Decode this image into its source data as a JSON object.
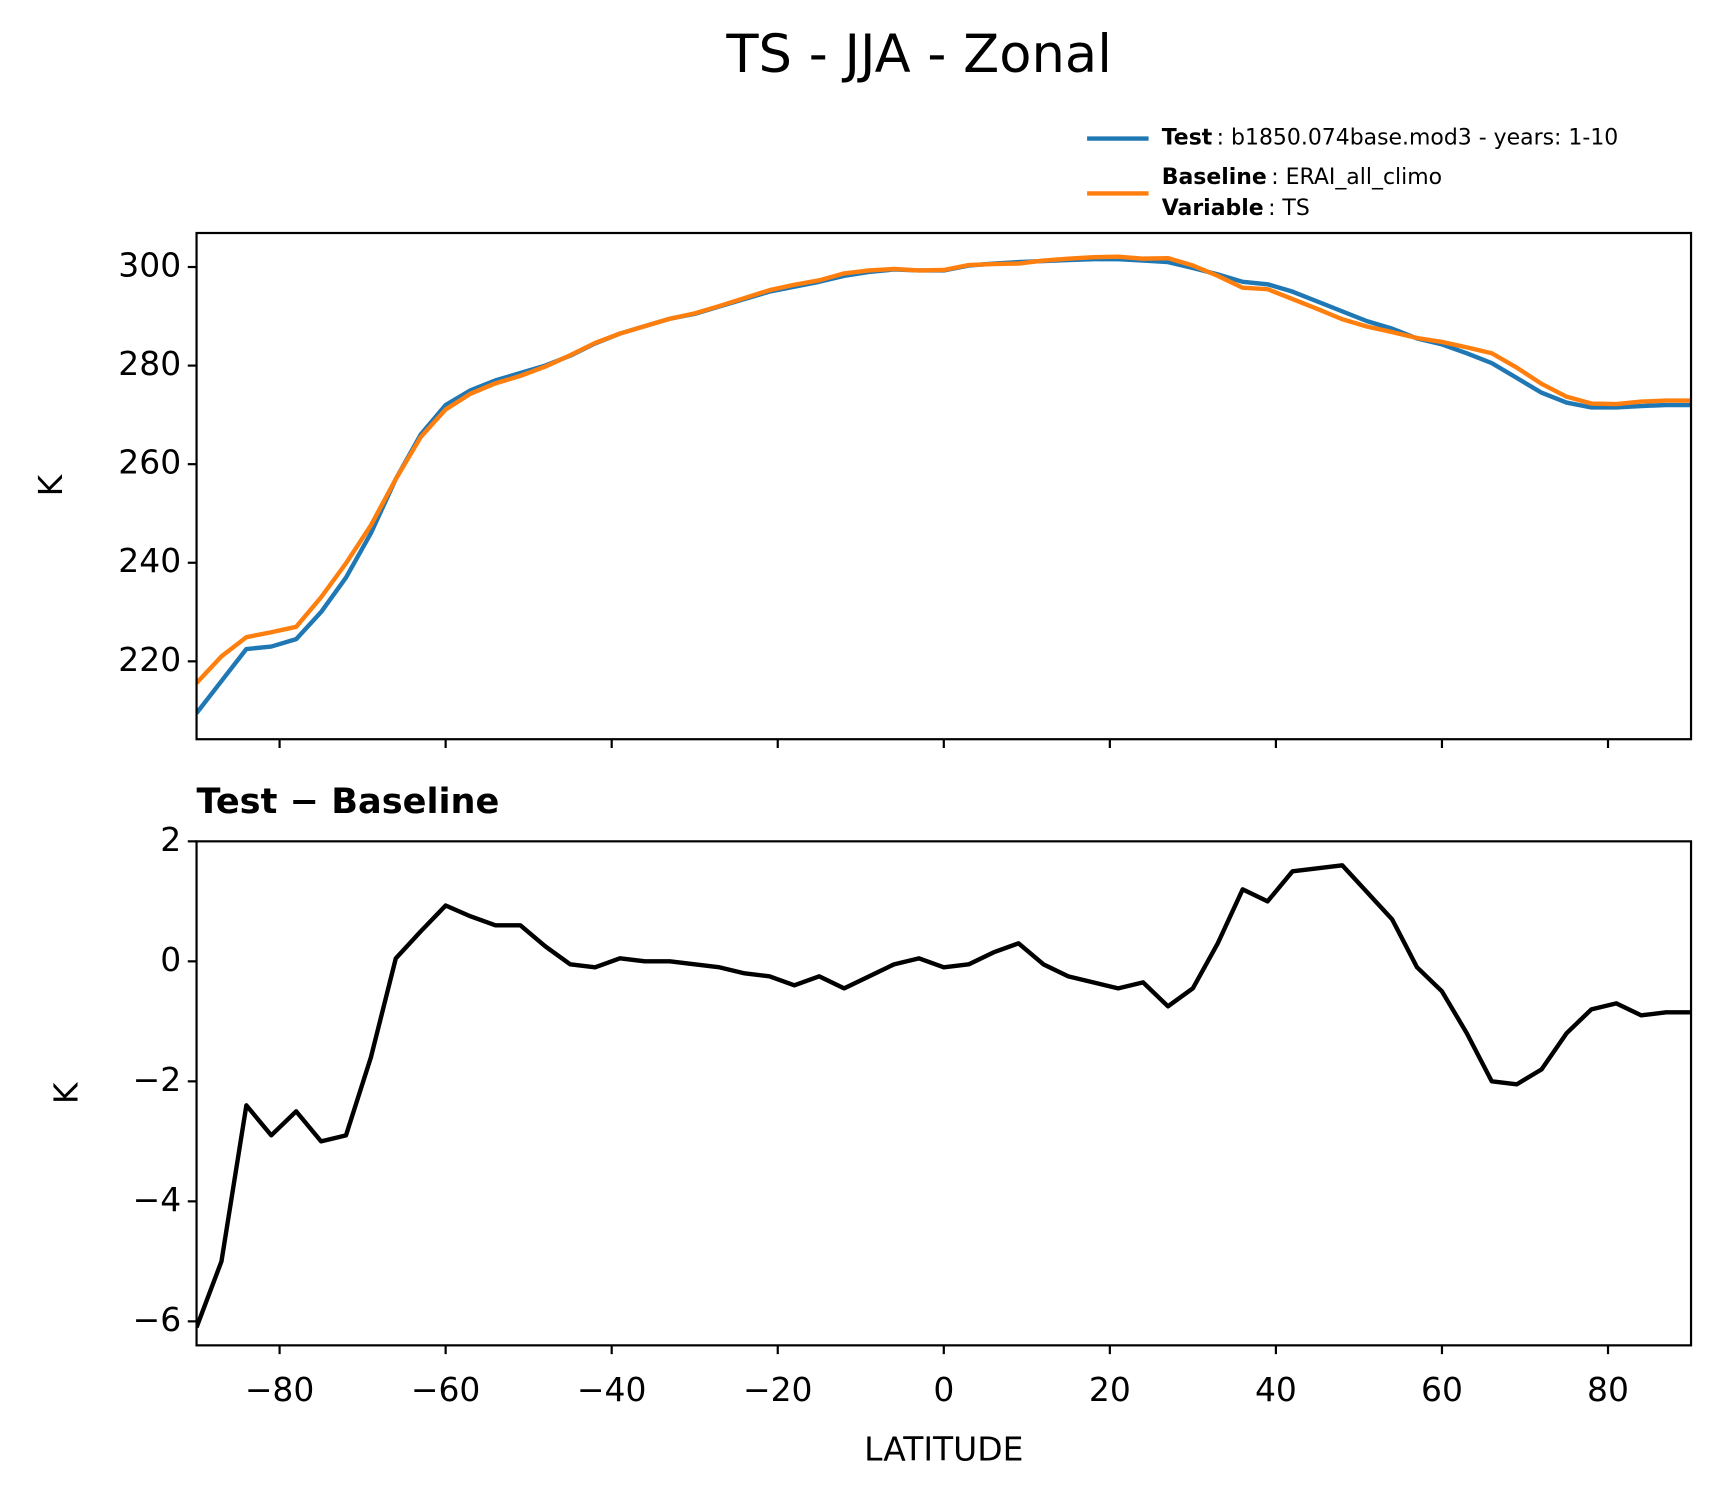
{
  "chart_data": [
    {
      "type": "line",
      "title": "TS - JJA - Zonal",
      "ylabel": "K",
      "x": [
        -90,
        -87,
        -84,
        -81,
        -78,
        -75,
        -72,
        -69,
        -66,
        -63,
        -60,
        -57,
        -54,
        -51,
        -48,
        -45,
        -42,
        -39,
        -36,
        -33,
        -30,
        -27,
        -24,
        -21,
        -18,
        -15,
        -12,
        -9,
        -6,
        -3,
        0,
        3,
        6,
        9,
        12,
        15,
        18,
        21,
        24,
        27,
        30,
        33,
        36,
        39,
        42,
        45,
        48,
        51,
        54,
        57,
        60,
        63,
        66,
        69,
        72,
        75,
        78,
        81,
        84,
        87,
        90
      ],
      "series": [
        {
          "name": "Test",
          "description": ": b1850.074base.mod3 - years: 1-10",
          "color": "#1f77b4",
          "values": [
            209.5,
            216,
            222.5,
            223,
            224.5,
            230,
            237,
            246,
            257,
            266,
            272,
            275,
            277,
            278.5,
            280,
            282,
            284.5,
            286.5,
            288,
            289.5,
            290.5,
            292,
            293.5,
            295,
            296,
            297,
            298.2,
            299,
            299.5,
            299.3,
            299.3,
            300.3,
            300.7,
            301,
            301.2,
            301.4,
            301.6,
            301.6,
            301.3,
            301,
            299.8,
            298.5,
            297,
            296.5,
            295,
            293,
            291,
            289,
            287.5,
            285.5,
            284.3,
            282.5,
            280.5,
            277.5,
            274.5,
            272.5,
            271.5,
            271.5,
            271.8,
            272,
            272
          ]
        },
        {
          "name": "Baseline",
          "description": ": ERAI_all_climo",
          "color": "#ff7f0e",
          "values": [
            215.6,
            221,
            224.9,
            225.9,
            227,
            233,
            239.9,
            247.6,
            257,
            265.5,
            271.1,
            274.3,
            276.4,
            277.9,
            279.8,
            282.1,
            284.6,
            286.5,
            288,
            289.5,
            290.6,
            292.1,
            293.7,
            295.3,
            296.4,
            297.3,
            298.7,
            299.3,
            299.6,
            299.3,
            299.4,
            300.4,
            300.6,
            300.7,
            301.3,
            301.7,
            302,
            302.1,
            301.7,
            301.8,
            300.3,
            298.2,
            295.8,
            295.5,
            293.5,
            291.5,
            289.4,
            287.9,
            286.8,
            285.6,
            284.8,
            283.7,
            282.5,
            279.6,
            276.3,
            273.7,
            272.3,
            272.2,
            272.7,
            272.9,
            272.9
          ]
        }
      ],
      "legend_note": {
        "name": "Variable",
        "description": ": TS"
      },
      "xlim": [
        -90,
        90
      ],
      "ylim": [
        204.2,
        306.9
      ],
      "xticks": [
        -80,
        -60,
        -40,
        -20,
        0,
        20,
        40,
        60,
        80
      ],
      "xticklabels": false,
      "yticks": [
        220,
        240,
        260,
        280,
        300
      ]
    },
    {
      "type": "line",
      "title": "Test − Baseline",
      "ylabel": "K",
      "xlabel": "LATITUDE",
      "x": [
        -90,
        -87,
        -84,
        -81,
        -78,
        -75,
        -72,
        -69,
        -66,
        -63,
        -60,
        -57,
        -54,
        -51,
        -48,
        -45,
        -42,
        -39,
        -36,
        -33,
        -30,
        -27,
        -24,
        -21,
        -18,
        -15,
        -12,
        -9,
        -6,
        -3,
        0,
        3,
        6,
        9,
        12,
        15,
        18,
        21,
        24,
        27,
        30,
        33,
        36,
        39,
        42,
        45,
        48,
        51,
        54,
        57,
        60,
        63,
        66,
        69,
        72,
        75,
        78,
        81,
        84,
        87,
        90
      ],
      "series": [
        {
          "color": "#000000",
          "values": [
            -6.1,
            -5,
            -2.4,
            -2.9,
            -2.5,
            -3,
            -2.9,
            -1.6,
            0.05,
            0.5,
            0.93,
            0.75,
            0.6,
            0.6,
            0.25,
            -0.05,
            -0.1,
            0.05,
            0,
            0,
            -0.05,
            -0.1,
            -0.2,
            -0.25,
            -0.4,
            -0.25,
            -0.45,
            -0.25,
            -0.05,
            0.05,
            -0.1,
            -0.05,
            0.15,
            0.3,
            -0.05,
            -0.25,
            -0.35,
            -0.45,
            -0.35,
            -0.75,
            -0.45,
            0.3,
            1.2,
            1,
            1.5,
            1.55,
            1.6,
            1.15,
            0.7,
            -0.1,
            -0.5,
            -1.2,
            -2,
            -2.05,
            -1.8,
            -1.2,
            -0.8,
            -0.7,
            -0.9,
            -0.85,
            -0.85
          ]
        }
      ],
      "xlim": [
        -90,
        90
      ],
      "ylim": [
        -6.4,
        2
      ],
      "xticks": [
        {
          "value": -80,
          "label": "−80"
        },
        {
          "value": -60,
          "label": "−60"
        },
        {
          "value": -40,
          "label": "−40"
        },
        {
          "value": -20,
          "label": "−20"
        },
        0,
        20,
        40,
        60,
        80
      ],
      "xticklabels": true,
      "yticks": [
        {
          "value": -6,
          "label": "−6"
        },
        {
          "value": -4,
          "label": "−4"
        },
        {
          "value": -2,
          "label": "−2"
        },
        0,
        2
      ]
    }
  ]
}
